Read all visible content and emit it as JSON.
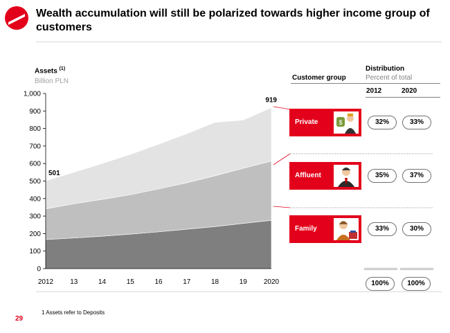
{
  "title": "Wealth accumulation will still be polarized towards higher income group of customers",
  "assets_label": "Assets",
  "assets_note_ref": "(1)",
  "unit_label": "Billion PLN",
  "chart_data": {
    "type": "area",
    "x": [
      2012,
      2013,
      2014,
      2015,
      2016,
      2017,
      2018,
      2019,
      2020
    ],
    "x_tick_labels": [
      "2012",
      "13",
      "14",
      "15",
      "16",
      "17",
      "18",
      "19",
      "2020"
    ],
    "y_tick_labels": [
      "0",
      "100",
      "200",
      "300",
      "400",
      "500",
      "600",
      "700",
      "800",
      "900",
      "1,000"
    ],
    "ylim": [
      0,
      1000
    ],
    "stacked_series": [
      {
        "values": [
          166,
          175,
          185,
          197,
          210,
          225,
          240,
          258,
          276
        ],
        "color": "#7f7f7f"
      },
      {
        "values": [
          175,
          195,
          210,
          225,
          245,
          265,
          290,
          315,
          338
        ],
        "color": "#bfbfbf"
      },
      {
        "values": [
          160,
          180,
          205,
          230,
          255,
          280,
          305,
          275,
          305
        ],
        "color": "#e3e3e3"
      }
    ],
    "totals": [
      501,
      550,
      600,
      652,
      710,
      770,
      835,
      848,
      919
    ],
    "data_labels": [
      {
        "x": 2012,
        "text": "501"
      },
      {
        "x": 2020,
        "text": "919"
      }
    ],
    "grid": false
  },
  "table": {
    "customer_group_header": "Customer group",
    "distribution_header": "Distribution",
    "percent_header": "Percent of total",
    "years": [
      "2012",
      "2020"
    ],
    "groups": [
      {
        "name": "Private",
        "icon": "money-bag-businessman-icon",
        "p2012": "32%",
        "p2020": "33%"
      },
      {
        "name": "Affluent",
        "icon": "businessman-icon",
        "p2012": "35%",
        "p2020": "37%"
      },
      {
        "name": "Family",
        "icon": "family-icon",
        "p2012": "33%",
        "p2020": "30%"
      }
    ],
    "totals": {
      "p2012": "100%",
      "p2020": "100%"
    }
  },
  "footnote": "1 Assets refer to Deposits",
  "page_number": "29",
  "colors": {
    "accent": "#e3001b",
    "dark_area": "#7f7f7f",
    "mid_area": "#bfbfbf",
    "light_area": "#e3e3e3"
  }
}
